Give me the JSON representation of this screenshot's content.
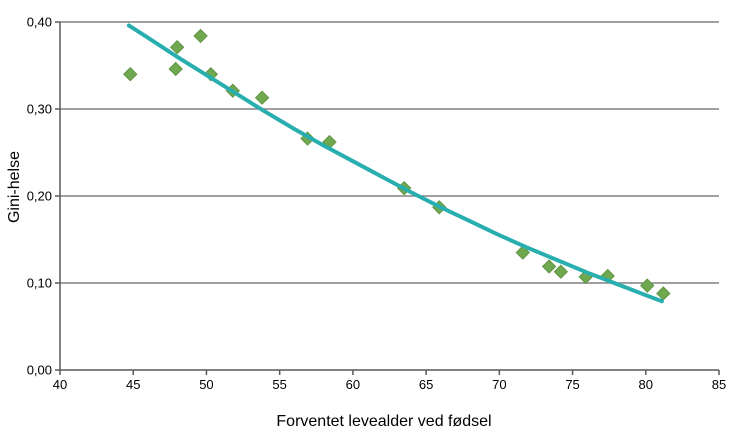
{
  "chart_data": {
    "type": "scatter",
    "title": "",
    "xlabel": "Forventet levealder ved fødsel",
    "ylabel": "Gini-helse",
    "xlim": [
      40,
      85
    ],
    "ylim": [
      0.0,
      0.4
    ],
    "x_ticks": [
      40,
      45,
      50,
      55,
      60,
      65,
      70,
      75,
      80,
      85
    ],
    "x_tick_labels": [
      "40",
      "45",
      "50",
      "55",
      "60",
      "65",
      "70",
      "75",
      "80",
      "85"
    ],
    "y_ticks": [
      0.0,
      0.1,
      0.2,
      0.3,
      0.4
    ],
    "y_tick_labels": [
      "0,00",
      "0,10",
      "0,20",
      "0,30",
      "0,40"
    ],
    "grid": "horizontal-only",
    "legend_position": "none",
    "colors": {
      "marker": "#6FA84F",
      "marker_edge": "#5F9443",
      "trend": "#29AEB0",
      "grid": "#808080",
      "axis": "#595959",
      "text": "#000000"
    },
    "series": [
      {
        "name": "observations",
        "type": "scatter",
        "marker": "diamond",
        "points": [
          [
            44.8,
            0.34
          ],
          [
            47.9,
            0.346
          ],
          [
            48.0,
            0.371
          ],
          [
            49.6,
            0.384
          ],
          [
            50.3,
            0.34
          ],
          [
            51.8,
            0.321
          ],
          [
            53.8,
            0.313
          ],
          [
            56.9,
            0.266
          ],
          [
            58.4,
            0.262
          ],
          [
            63.5,
            0.209
          ],
          [
            65.9,
            0.187
          ],
          [
            71.6,
            0.135
          ],
          [
            73.4,
            0.119
          ],
          [
            74.2,
            0.113
          ],
          [
            75.9,
            0.107
          ],
          [
            77.4,
            0.108
          ],
          [
            80.1,
            0.097
          ],
          [
            81.2,
            0.088
          ]
        ]
      },
      {
        "name": "trend",
        "type": "line",
        "points": [
          [
            44.7,
            0.396
          ],
          [
            46.0,
            0.382
          ],
          [
            48.0,
            0.36
          ],
          [
            50.0,
            0.339
          ],
          [
            52.0,
            0.318
          ],
          [
            54.0,
            0.297
          ],
          [
            56.0,
            0.277
          ],
          [
            58.0,
            0.258
          ],
          [
            60.0,
            0.24
          ],
          [
            62.0,
            0.222
          ],
          [
            64.0,
            0.204
          ],
          [
            66.0,
            0.187
          ],
          [
            68.0,
            0.171
          ],
          [
            70.0,
            0.155
          ],
          [
            72.0,
            0.14
          ],
          [
            74.0,
            0.126
          ],
          [
            76.0,
            0.112
          ],
          [
            78.0,
            0.099
          ],
          [
            80.0,
            0.086
          ],
          [
            81.1,
            0.079
          ]
        ]
      }
    ]
  }
}
